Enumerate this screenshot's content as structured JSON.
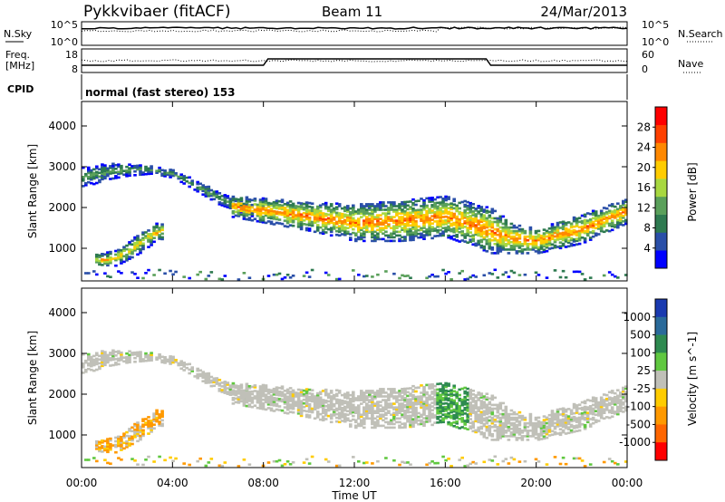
{
  "header": {
    "station": "Pykkvibaer (fitACF)",
    "beam": "Beam 11",
    "date": "24/Mar/2013"
  },
  "sky_panel": {
    "left_label": "N.Sky",
    "right_label": "N.Search",
    "left_ticks": [
      "10^5",
      "10^0"
    ],
    "right_ticks": [
      "10^5",
      "10^0"
    ]
  },
  "freq_panel": {
    "left_label_1": "Freq.",
    "left_label_2": "[MHz]",
    "right_label": "Nave",
    "left_ticks": [
      "18",
      "8"
    ],
    "right_ticks": [
      "60",
      "0"
    ]
  },
  "cpid_panel": {
    "label": "CPID",
    "text": "normal (fast stereo) 153"
  },
  "chart_data": [
    {
      "type": "heatmap",
      "panel": "power",
      "ylabel": "Slant Range [km]",
      "xlabel": "",
      "x_ticks": [
        "00:00",
        "04:00",
        "08:00",
        "12:00",
        "16:00",
        "20:00",
        "00:00"
      ],
      "x_hours": [
        0,
        24
      ],
      "ylim": [
        200,
        4600
      ],
      "y_ticks": [
        1000,
        2000,
        3000,
        4000
      ],
      "colorbar": {
        "label": "Power [dB]",
        "ticks": [
          4,
          8,
          12,
          16,
          20,
          24,
          28
        ],
        "range": [
          0,
          32
        ],
        "colors": [
          "#0000ff",
          "#2a4fa8",
          "#2e7a50",
          "#5aa05a",
          "#a8d840",
          "#ffcc00",
          "#ff8800",
          "#ff4000",
          "#ff0000"
        ]
      },
      "echo_bands": [
        {
          "name": "far",
          "t": [
            0,
            1,
            2,
            3,
            4,
            5,
            6,
            7,
            7.5
          ],
          "center": [
            2700,
            2850,
            2900,
            2900,
            2800,
            2500,
            2200,
            2000,
            1900
          ],
          "width": [
            250,
            200,
            150,
            100,
            100,
            120,
            150,
            150,
            150
          ],
          "level": 12
        },
        {
          "name": "main",
          "t": [
            6.5,
            8,
            10,
            12,
            14,
            16,
            18,
            19,
            20,
            22,
            24
          ],
          "center": [
            2000,
            1900,
            1750,
            1600,
            1650,
            1750,
            1400,
            1200,
            1150,
            1450,
            1900
          ],
          "width": [
            250,
            300,
            350,
            450,
            500,
            500,
            550,
            350,
            300,
            350,
            300
          ],
          "level": 24
        },
        {
          "name": "near",
          "t": [
            0.5,
            1,
            1.5,
            2,
            2.5,
            3,
            3.5
          ],
          "center": [
            700,
            680,
            750,
            900,
            1100,
            1300,
            1400
          ],
          "width": [
            150,
            180,
            200,
            200,
            250,
            250,
            200
          ],
          "level": 20
        }
      ]
    },
    {
      "type": "heatmap",
      "panel": "velocity",
      "ylabel": "Slant Range [km]",
      "xlabel": "Time UT",
      "x_ticks": [
        "00:00",
        "04:00",
        "08:00",
        "12:00",
        "16:00",
        "20:00",
        "00:00"
      ],
      "ylim": [
        200,
        4600
      ],
      "y_ticks": [
        1000,
        2000,
        3000,
        4000
      ],
      "colorbar": {
        "label": "Velocity [m s^-1]",
        "ticks": [
          "1000",
          "500",
          "100",
          "25",
          "-25",
          "-100",
          "-500",
          "-1000"
        ],
        "colors": [
          "#1a3ab0",
          "#2a6a9a",
          "#2e8a50",
          "#60c840",
          "#c0c0b8",
          "#ffcc00",
          "#ff9900",
          "#ff6600",
          "#ff0000"
        ]
      }
    }
  ]
}
